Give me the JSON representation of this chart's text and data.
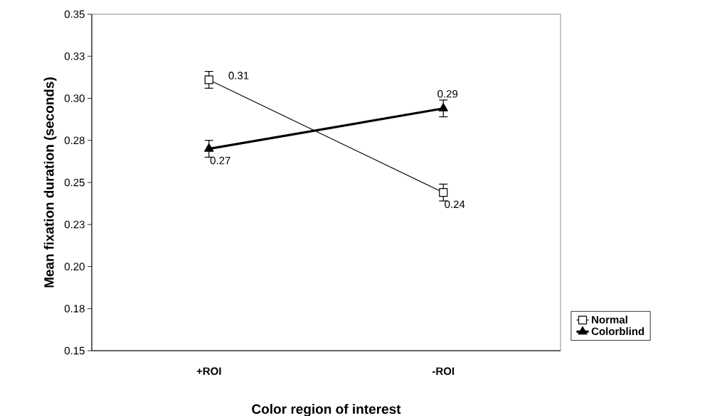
{
  "chart_data": {
    "type": "line",
    "xlabel": "Color region of interest",
    "ylabel": "Mean fixation duration (seconds)",
    "categories": [
      "+ROI",
      "-ROI"
    ],
    "series": [
      {
        "name": "Normal",
        "color": "#000000",
        "marker": "square",
        "values": [
          0.311,
          0.244
        ],
        "errors": [
          0.005,
          0.005
        ],
        "value_labels": [
          "0.31",
          "0.24"
        ]
      },
      {
        "name": "Colorblind",
        "color": "#000000",
        "marker": "triangle",
        "values": [
          0.27,
          0.294
        ],
        "errors": [
          0.005,
          0.005
        ],
        "value_labels": [
          "0.27",
          "0.29"
        ]
      }
    ],
    "ylim": [
      0.15,
      0.35
    ],
    "yticks": [
      0.15,
      {
        "value": 0.175,
        "label": "0.18"
      },
      {
        "value": 0.2,
        "label": "0.20"
      },
      {
        "value": 0.225,
        "label": "0.23"
      },
      0.25,
      {
        "value": 0.275,
        "label": "0.28"
      },
      {
        "value": 0.3,
        "label": "0.30"
      },
      {
        "value": 0.325,
        "label": "0.33"
      },
      0.35
    ],
    "grid": false,
    "legend": "bottom right",
    "line_style": "solid"
  }
}
